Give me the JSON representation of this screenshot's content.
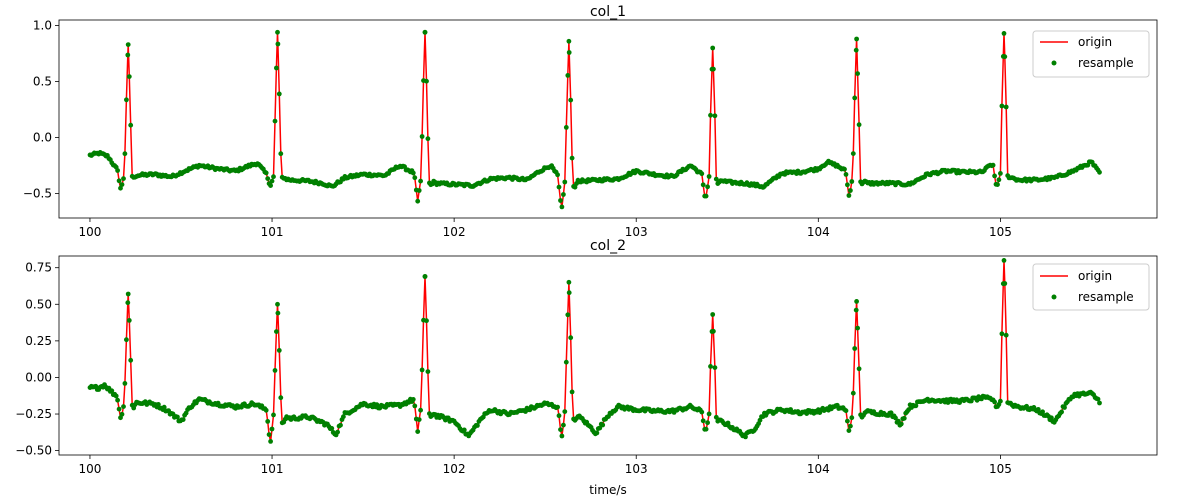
{
  "chart_data": [
    {
      "type": "line",
      "title": "col_1",
      "xlabel": "",
      "ylabel": "",
      "xlim": [
        99.83,
        105.86
      ],
      "ylim": [
        -0.72,
        1.05
      ],
      "xticks": [
        100,
        101,
        102,
        103,
        104,
        105
      ],
      "xtick_labels": [
        "100",
        "101",
        "102",
        "103",
        "104",
        "105"
      ],
      "yticks": [
        -0.5,
        0.0,
        0.5,
        1.0
      ],
      "ytick_labels": [
        "−0.5",
        "0.0",
        "0.5",
        "1.0"
      ],
      "grid": false,
      "legend_position": "top-right",
      "x_range": [
        100.0,
        105.55
      ],
      "series": [
        {
          "name": "origin",
          "style": "line",
          "color": "#ff0000"
        },
        {
          "name": "resample",
          "style": "markers",
          "color": "#008000"
        }
      ],
      "peaks": [
        {
          "x": 100.21,
          "y": 0.83,
          "min": -0.47
        },
        {
          "x": 101.03,
          "y": 0.94,
          "min": -0.44
        },
        {
          "x": 101.84,
          "y": 0.94,
          "min": -0.57
        },
        {
          "x": 102.63,
          "y": 0.86,
          "min": -0.65
        },
        {
          "x": 103.42,
          "y": 0.8,
          "min": -0.57
        },
        {
          "x": 104.21,
          "y": 0.88,
          "min": -0.54
        },
        {
          "x": 105.02,
          "y": 0.93,
          "min": -0.45
        }
      ],
      "baseline": [
        [
          100.0,
          -0.16
        ],
        [
          100.05,
          -0.14
        ],
        [
          100.1,
          -0.17
        ],
        [
          100.14,
          -0.27
        ],
        [
          100.18,
          -0.32
        ],
        [
          100.25,
          -0.34
        ],
        [
          100.35,
          -0.33
        ],
        [
          100.45,
          -0.35
        ],
        [
          100.52,
          -0.3
        ],
        [
          100.6,
          -0.25
        ],
        [
          100.7,
          -0.28
        ],
        [
          100.8,
          -0.3
        ],
        [
          100.88,
          -0.25
        ],
        [
          100.92,
          -0.23
        ],
        [
          100.97,
          -0.33
        ],
        [
          101.1,
          -0.38
        ],
        [
          101.2,
          -0.39
        ],
        [
          101.28,
          -0.41
        ],
        [
          101.33,
          -0.44
        ],
        [
          101.4,
          -0.36
        ],
        [
          101.5,
          -0.33
        ],
        [
          101.62,
          -0.34
        ],
        [
          101.7,
          -0.25
        ],
        [
          101.76,
          -0.3
        ],
        [
          101.9,
          -0.41
        ],
        [
          102.0,
          -0.42
        ],
        [
          102.1,
          -0.43
        ],
        [
          102.2,
          -0.37
        ],
        [
          102.3,
          -0.36
        ],
        [
          102.4,
          -0.38
        ],
        [
          102.47,
          -0.3
        ],
        [
          102.53,
          -0.25
        ],
        [
          102.58,
          -0.37
        ],
        [
          102.7,
          -0.39
        ],
        [
          102.8,
          -0.38
        ],
        [
          102.9,
          -0.37
        ],
        [
          103.0,
          -0.3
        ],
        [
          103.1,
          -0.33
        ],
        [
          103.2,
          -0.35
        ],
        [
          103.3,
          -0.25
        ],
        [
          103.36,
          -0.33
        ],
        [
          103.5,
          -0.4
        ],
        [
          103.6,
          -0.41
        ],
        [
          103.7,
          -0.44
        ],
        [
          103.8,
          -0.32
        ],
        [
          103.9,
          -0.31
        ],
        [
          104.0,
          -0.28
        ],
        [
          104.05,
          -0.22
        ],
        [
          104.1,
          -0.25
        ],
        [
          104.15,
          -0.3
        ],
        [
          104.27,
          -0.41
        ],
        [
          104.4,
          -0.41
        ],
        [
          104.5,
          -0.42
        ],
        [
          104.6,
          -0.33
        ],
        [
          104.7,
          -0.3
        ],
        [
          104.8,
          -0.31
        ],
        [
          104.9,
          -0.31
        ],
        [
          104.95,
          -0.24
        ],
        [
          104.99,
          -0.32
        ],
        [
          105.1,
          -0.38
        ],
        [
          105.2,
          -0.38
        ],
        [
          105.3,
          -0.36
        ],
        [
          105.4,
          -0.3
        ],
        [
          105.5,
          -0.22
        ],
        [
          105.55,
          -0.33
        ]
      ]
    },
    {
      "type": "line",
      "title": "col_2",
      "xlabel": "time/s",
      "ylabel": "",
      "xlim": [
        99.83,
        105.86
      ],
      "ylim": [
        -0.53,
        0.83
      ],
      "xticks": [
        100,
        101,
        102,
        103,
        104,
        105
      ],
      "xtick_labels": [
        "100",
        "101",
        "102",
        "103",
        "104",
        "105"
      ],
      "yticks": [
        -0.5,
        -0.25,
        0.0,
        0.25,
        0.5,
        0.75
      ],
      "ytick_labels": [
        "−0.50",
        "−0.25",
        "0.00",
        "0.25",
        "0.50",
        "0.75"
      ],
      "grid": false,
      "legend_position": "top-right",
      "x_range": [
        100.0,
        105.55
      ],
      "series": [
        {
          "name": "origin",
          "style": "line",
          "color": "#ff0000"
        },
        {
          "name": "resample",
          "style": "markers",
          "color": "#008000"
        }
      ],
      "peaks": [
        {
          "x": 100.21,
          "y": 0.57,
          "min": -0.29
        },
        {
          "x": 101.03,
          "y": 0.5,
          "min": -0.46
        },
        {
          "x": 101.84,
          "y": 0.69,
          "min": -0.37
        },
        {
          "x": 102.63,
          "y": 0.65,
          "min": -0.42
        },
        {
          "x": 103.42,
          "y": 0.43,
          "min": -0.38
        },
        {
          "x": 104.21,
          "y": 0.52,
          "min": -0.38
        },
        {
          "x": 105.02,
          "y": 0.8,
          "min": -0.21
        }
      ],
      "baseline": [
        [
          100.0,
          -0.07
        ],
        [
          100.05,
          -0.07
        ],
        [
          100.08,
          -0.05
        ],
        [
          100.12,
          -0.1
        ],
        [
          100.17,
          -0.15
        ],
        [
          100.25,
          -0.17
        ],
        [
          100.35,
          -0.18
        ],
        [
          100.42,
          -0.22
        ],
        [
          100.5,
          -0.3
        ],
        [
          100.55,
          -0.2
        ],
        [
          100.6,
          -0.15
        ],
        [
          100.7,
          -0.18
        ],
        [
          100.8,
          -0.2
        ],
        [
          100.9,
          -0.18
        ],
        [
          100.97,
          -0.22
        ],
        [
          101.1,
          -0.28
        ],
        [
          101.2,
          -0.27
        ],
        [
          101.3,
          -0.32
        ],
        [
          101.35,
          -0.39
        ],
        [
          101.4,
          -0.25
        ],
        [
          101.5,
          -0.18
        ],
        [
          101.6,
          -0.2
        ],
        [
          101.7,
          -0.19
        ],
        [
          101.78,
          -0.15
        ],
        [
          101.9,
          -0.26
        ],
        [
          102.0,
          -0.3
        ],
        [
          102.08,
          -0.4
        ],
        [
          102.15,
          -0.28
        ],
        [
          102.2,
          -0.22
        ],
        [
          102.3,
          -0.25
        ],
        [
          102.4,
          -0.22
        ],
        [
          102.5,
          -0.18
        ],
        [
          102.57,
          -0.2
        ],
        [
          102.7,
          -0.28
        ],
        [
          102.78,
          -0.38
        ],
        [
          102.85,
          -0.25
        ],
        [
          102.9,
          -0.2
        ],
        [
          103.0,
          -0.22
        ],
        [
          103.1,
          -0.23
        ],
        [
          103.2,
          -0.23
        ],
        [
          103.3,
          -0.2
        ],
        [
          103.37,
          -0.24
        ],
        [
          103.5,
          -0.32
        ],
        [
          103.6,
          -0.4
        ],
        [
          103.65,
          -0.35
        ],
        [
          103.7,
          -0.25
        ],
        [
          103.8,
          -0.22
        ],
        [
          103.9,
          -0.24
        ],
        [
          104.0,
          -0.23
        ],
        [
          104.1,
          -0.2
        ],
        [
          104.16,
          -0.22
        ],
        [
          104.3,
          -0.24
        ],
        [
          104.4,
          -0.25
        ],
        [
          104.45,
          -0.32
        ],
        [
          104.5,
          -0.2
        ],
        [
          104.6,
          -0.15
        ],
        [
          104.7,
          -0.16
        ],
        [
          104.8,
          -0.16
        ],
        [
          104.9,
          -0.14
        ],
        [
          104.97,
          -0.15
        ],
        [
          105.1,
          -0.2
        ],
        [
          105.2,
          -0.22
        ],
        [
          105.3,
          -0.3
        ],
        [
          105.35,
          -0.2
        ],
        [
          105.4,
          -0.12
        ],
        [
          105.5,
          -0.11
        ],
        [
          105.55,
          -0.17
        ]
      ]
    }
  ]
}
